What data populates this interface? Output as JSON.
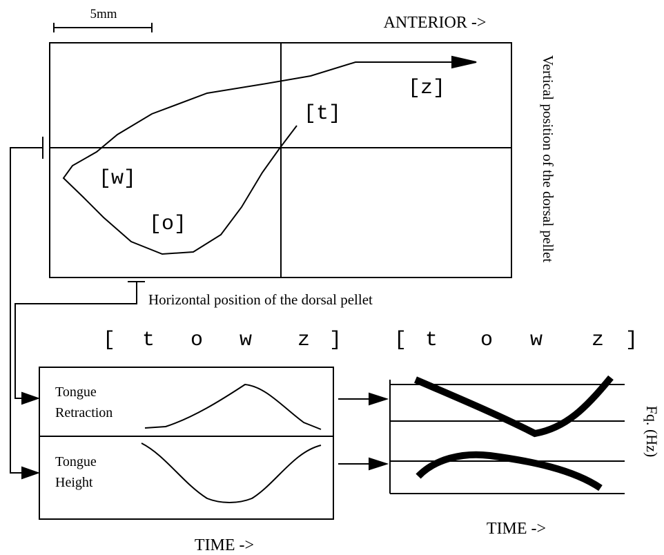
{
  "top_panel": {
    "scale_label": "5mm",
    "anterior_label": "ANTERIOR ->",
    "vertical_label": "Vertical position of the dorsal pellet",
    "horizontal_label": "Horizontal position of the dorsal pellet",
    "phones": [
      "[z]",
      "[t]",
      "[w]",
      "[o]"
    ]
  },
  "transcription_left": [
    "[",
    "t",
    "o",
    "w",
    "z",
    "]"
  ],
  "transcription_right": [
    "[",
    "t",
    "o",
    "w",
    "z",
    "]"
  ],
  "left_panel": {
    "retraction_label": [
      "Tongue",
      "Retraction"
    ],
    "height_label": [
      "Tongue",
      "Height"
    ],
    "time_label": "TIME ->"
  },
  "right_panel": {
    "freq_label": "Fq. (Hz)",
    "time_label": "TIME ->"
  }
}
